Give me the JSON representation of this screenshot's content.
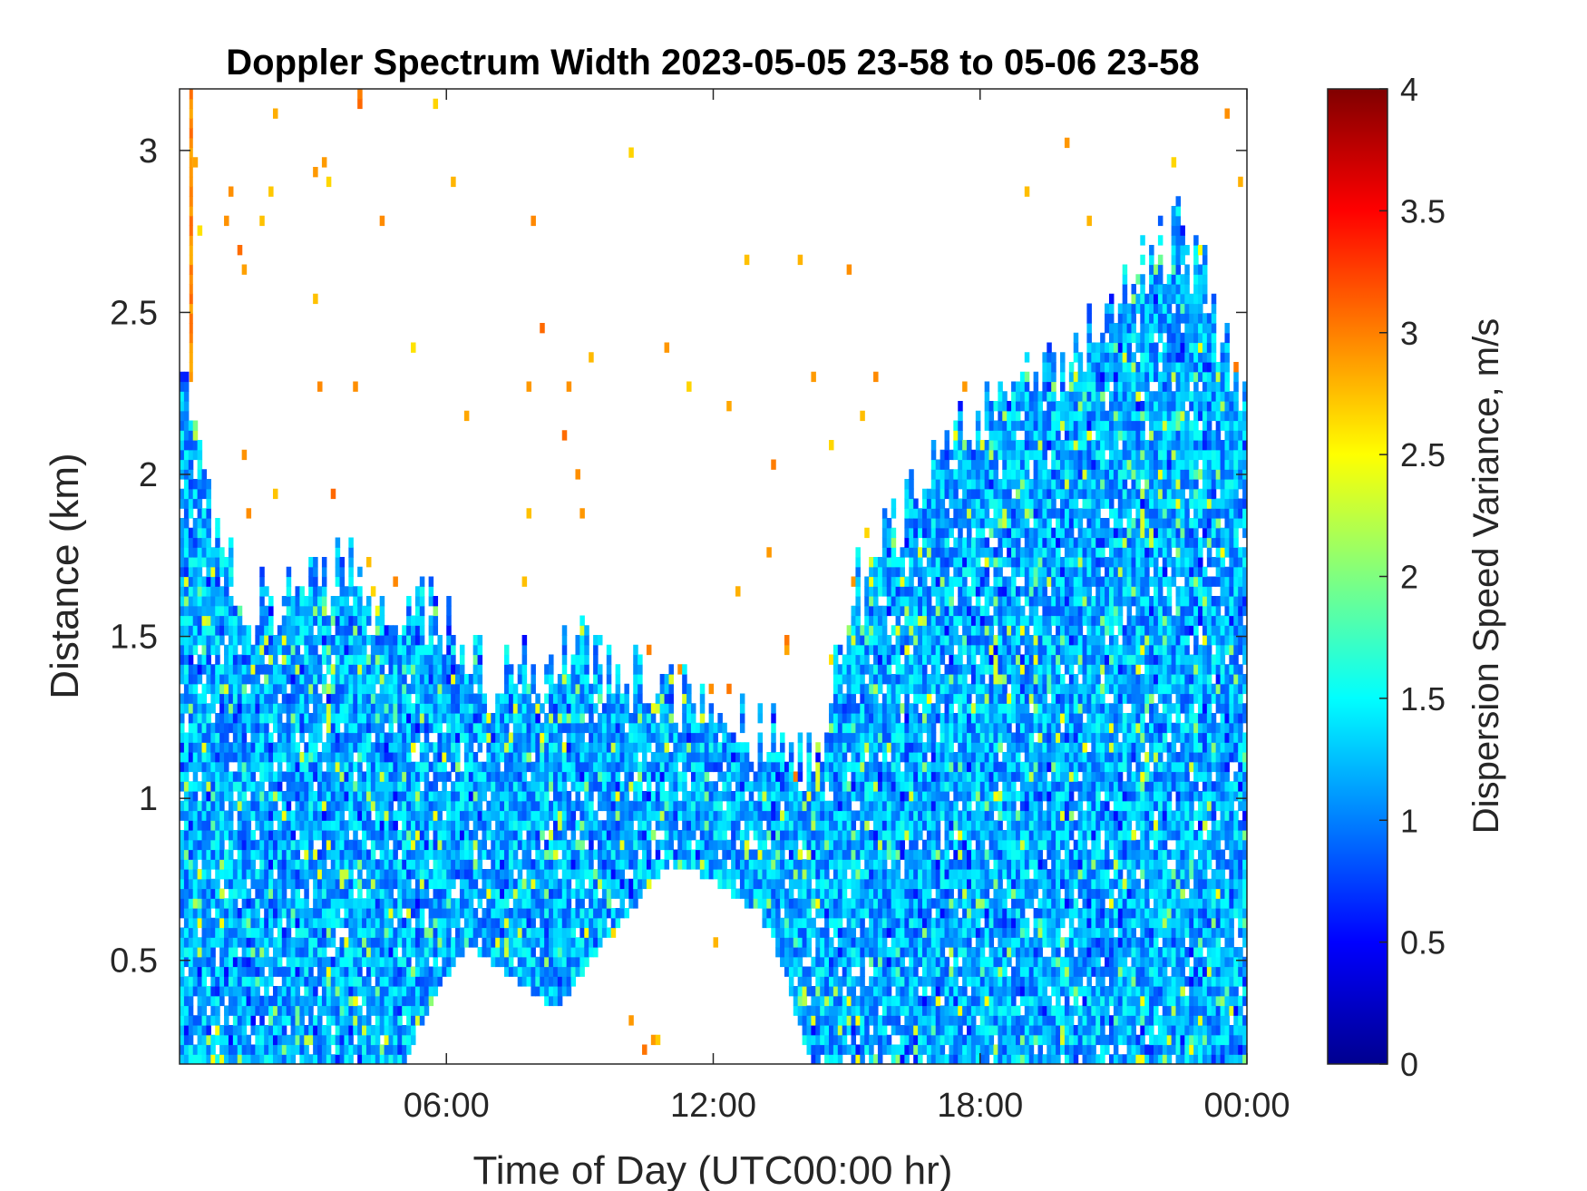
{
  "chart_data": {
    "type": "heatmap",
    "title": "Doppler Spectrum Width 2023-05-05 23-58 to 05-06 23-58",
    "xlabel": "Time of Day (UTC00:00 hr)",
    "ylabel": "Distance (km)",
    "colorbar_label": "Dispersion Speed Variance, m/s",
    "colormap": "jet",
    "xlim_hours": [
      0,
      24
    ],
    "ylim_km": [
      0.18,
      3.19
    ],
    "clim": [
      0,
      4
    ],
    "x_ticks": [
      {
        "value": 6,
        "label": "06:00"
      },
      {
        "value": 12,
        "label": "12:00"
      },
      {
        "value": 18,
        "label": "18:00"
      },
      {
        "value": 24,
        "label": "00:00"
      }
    ],
    "y_ticks": [
      {
        "value": 0.5,
        "label": "0.5"
      },
      {
        "value": 1,
        "label": "1"
      },
      {
        "value": 1.5,
        "label": "1.5"
      },
      {
        "value": 2,
        "label": "2"
      },
      {
        "value": 2.5,
        "label": "2.5"
      },
      {
        "value": 3,
        "label": "3"
      }
    ],
    "colorbar_ticks": [
      {
        "value": 0,
        "label": "0"
      },
      {
        "value": 0.5,
        "label": "0.5"
      },
      {
        "value": 1,
        "label": "1"
      },
      {
        "value": 1.5,
        "label": "1.5"
      },
      {
        "value": 2,
        "label": "2"
      },
      {
        "value": 2.5,
        "label": "2.5"
      },
      {
        "value": 3,
        "label": "3"
      },
      {
        "value": 3.5,
        "label": "3.5"
      },
      {
        "value": 4,
        "label": "4"
      }
    ],
    "signal_top_km": {
      "hours": [
        0,
        0.4,
        0.7,
        1.0,
        1.5,
        2.0,
        3.0,
        4.0,
        5.0,
        5.5,
        6.0,
        6.5,
        7.0,
        8.0,
        9.0,
        10.0,
        11.0,
        12.0,
        12.8,
        13.5,
        14.0,
        14.5,
        15.0,
        15.5,
        16.0,
        17.0,
        18.0,
        19.0,
        20.0,
        21.0,
        22.0,
        22.5,
        23.0,
        23.5,
        24.0
      ],
      "km": [
        2.3,
        2.1,
        1.9,
        1.75,
        1.6,
        1.6,
        1.65,
        1.7,
        1.6,
        1.6,
        1.55,
        1.45,
        1.35,
        1.4,
        1.45,
        1.35,
        1.35,
        1.3,
        1.2,
        1.15,
        1.1,
        1.25,
        1.55,
        1.75,
        1.85,
        2.0,
        2.2,
        2.3,
        2.35,
        2.5,
        2.7,
        2.75,
        2.6,
        2.4,
        2.3
      ]
    },
    "signal_gap_below_km": {
      "hours": [
        5.0,
        6.0,
        6.5,
        7.5,
        8.5,
        9.5,
        11.0,
        12.0,
        13.0,
        13.6,
        14.2
      ],
      "km": [
        0.18,
        0.45,
        0.55,
        0.45,
        0.35,
        0.55,
        0.8,
        0.75,
        0.65,
        0.45,
        0.18
      ]
    },
    "dominant_value_range": [
      0.8,
      1.6
    ]
  }
}
